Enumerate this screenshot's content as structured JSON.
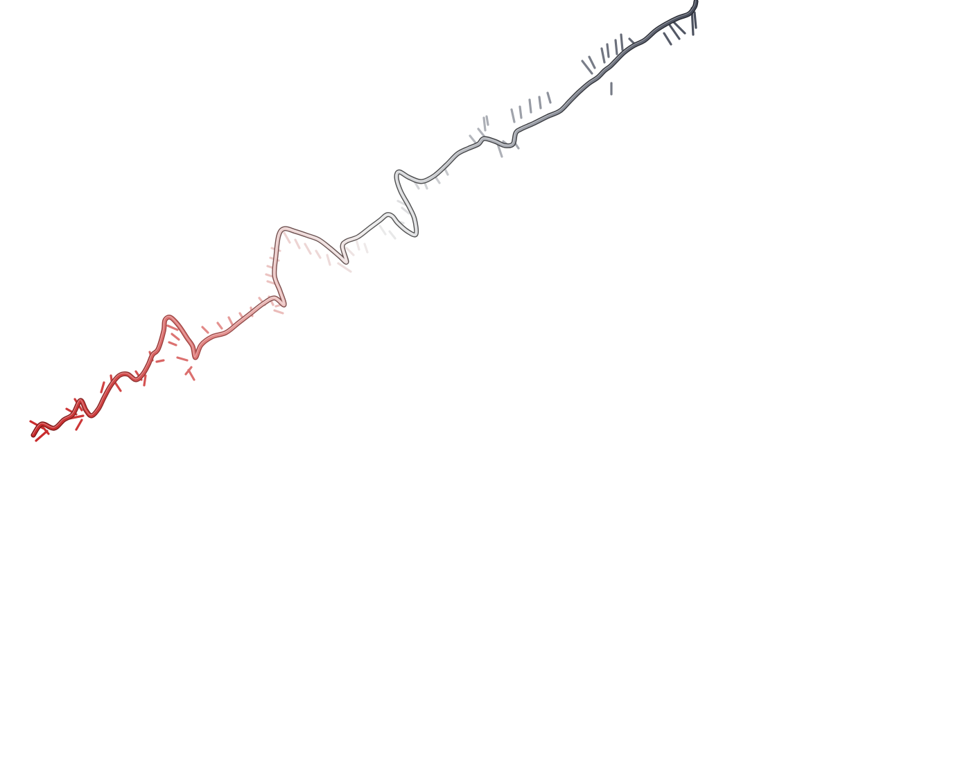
{
  "viewer": {
    "background_color": "#ffffff",
    "representation": "cartoon-ribbon-with-nucleotide-sticks",
    "molecule_type": "single-stranded nucleic acid",
    "color_scheme": {
      "start_color": "#d23a3a",
      "mid_color": "#f0eeee",
      "end_color": "#454a58"
    }
  }
}
